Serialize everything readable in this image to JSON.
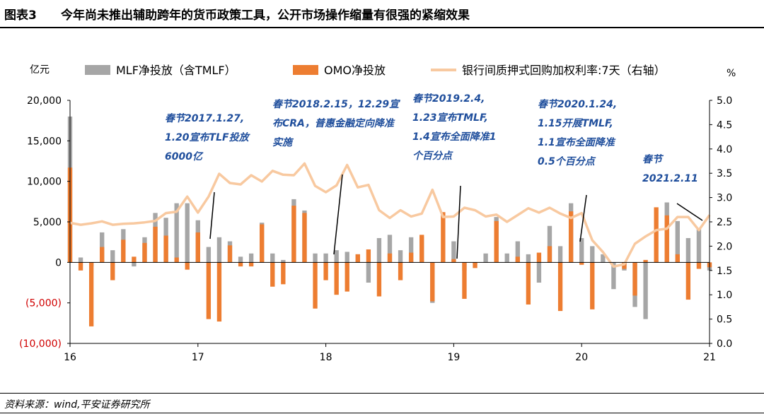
{
  "header": {
    "figure_label": "图表3",
    "title": "今年尚未推出辅助跨年的货币政策工具，公开市场操作缩量有很强的紧缩效果"
  },
  "footer": {
    "source": "资料来源：wind,平安证券研究所"
  },
  "chart_data": {
    "type": "bar+line",
    "left_axis": {
      "unit": "亿元",
      "range": [
        -10000,
        20000
      ],
      "ticks": [
        20000,
        15000,
        10000,
        5000,
        0,
        -5000,
        -10000
      ],
      "tick_labels": [
        "20,000",
        "15,000",
        "10,000",
        "5,000",
        "0",
        "(5,000)",
        "(10,000)"
      ]
    },
    "right_axis": {
      "unit": "%",
      "range": [
        0,
        5
      ],
      "ticks": [
        5.0,
        4.5,
        4.0,
        3.5,
        3.0,
        2.5,
        2.0,
        1.5,
        1.0,
        0.5,
        0.0
      ],
      "tick_labels": [
        "5.0",
        "4.5",
        "4.0",
        "3.5",
        "3.0",
        "2.5",
        "2.0",
        "1.5",
        "1.0",
        "0.5",
        "0.0"
      ]
    },
    "x_axis": {
      "tick_labels": [
        "16",
        "17",
        "18",
        "19",
        "20",
        "21"
      ],
      "tick_month_index": [
        0,
        12,
        24,
        36,
        48,
        60
      ],
      "months": 61
    },
    "colors": {
      "mlf": "#a6a6a6",
      "omo": "#ed7d31",
      "rate": "#f8c9a0",
      "annotation": "#1f4e9c",
      "negative_tick": "#d00000"
    },
    "series": [
      {
        "name": "MLF净投放（含TMLF）",
        "kind": "bar",
        "axis": "left",
        "values": [
          18000,
          600,
          -500,
          3700,
          1500,
          4100,
          -500,
          3100,
          6100,
          5500,
          7300,
          7300,
          5200,
          1900,
          3100,
          2600,
          700,
          1100,
          4900,
          1100,
          300,
          7800,
          6400,
          1100,
          1100,
          1500,
          1300,
          1000,
          -2500,
          3000,
          3400,
          1500,
          3100,
          3200,
          -5000,
          300,
          2600,
          -1000,
          -200,
          1100,
          5600,
          1100,
          2600,
          1000,
          -2500,
          4500,
          2000,
          7300,
          3000,
          2000,
          1000,
          -3300,
          -1000,
          -5500,
          -7000,
          300,
          7400,
          5100,
          3000,
          4200,
          -1000
        ]
      },
      {
        "name": "OMO净投放",
        "kind": "bar",
        "axis": "left",
        "values": [
          11700,
          -1000,
          -7900,
          1900,
          -2200,
          2800,
          700,
          2400,
          4400,
          3300,
          600,
          -900,
          3700,
          -7000,
          -7300,
          2100,
          -500,
          -500,
          4700,
          -3000,
          -2700,
          7000,
          6100,
          -5700,
          -2200,
          -4000,
          -3600,
          1000,
          1600,
          -4200,
          1100,
          -2200,
          1200,
          3400,
          -4800,
          6200,
          400,
          -4500,
          -700,
          0,
          5100,
          0,
          700,
          -5200,
          1200,
          2000,
          -6000,
          6300,
          -300,
          -5800,
          0,
          0,
          -800,
          -4100,
          300,
          6800,
          5800,
          1000,
          -4600,
          -800,
          -600
        ]
      },
      {
        "name": "银行间质押式回购加权利率:7天（右轴）",
        "kind": "line",
        "axis": "right",
        "values": [
          2.48,
          2.44,
          2.47,
          2.51,
          2.44,
          2.46,
          2.47,
          2.49,
          2.52,
          2.68,
          2.71,
          3.02,
          2.69,
          3.02,
          3.49,
          3.3,
          3.27,
          3.46,
          3.33,
          3.55,
          3.47,
          3.46,
          3.7,
          3.24,
          3.11,
          3.25,
          3.67,
          3.21,
          3.26,
          2.74,
          2.58,
          2.74,
          2.61,
          2.67,
          3.16,
          2.6,
          2.61,
          2.79,
          2.74,
          2.61,
          2.65,
          2.5,
          2.64,
          2.78,
          2.69,
          2.79,
          2.67,
          2.58,
          2.68,
          2.12,
          1.88,
          1.58,
          1.63,
          2.05,
          2.2,
          2.33,
          2.36,
          2.6,
          2.6,
          2.33,
          2.64
        ]
      }
    ],
    "annotations": [
      {
        "lines": [
          "春节2017.1.27,",
          "1.20宣布TLF投放",
          "6000亿"
        ]
      },
      {
        "lines": [
          "春节2018.2.15，12.29宣",
          "布CRA，普惠金融定向降准",
          "实施"
        ]
      },
      {
        "lines": [
          "春节2019.2.4,",
          "1.23宣布TMLF,",
          "1.4宣布全面降准1",
          "个百分点"
        ]
      },
      {
        "lines": [
          "春节2020.1.24,",
          "1.15开展TMLF,",
          "1.1宣布全面降准",
          "0.5个百分点"
        ]
      },
      {
        "lines": [
          "春节",
          "2021.2.11"
        ]
      }
    ]
  }
}
